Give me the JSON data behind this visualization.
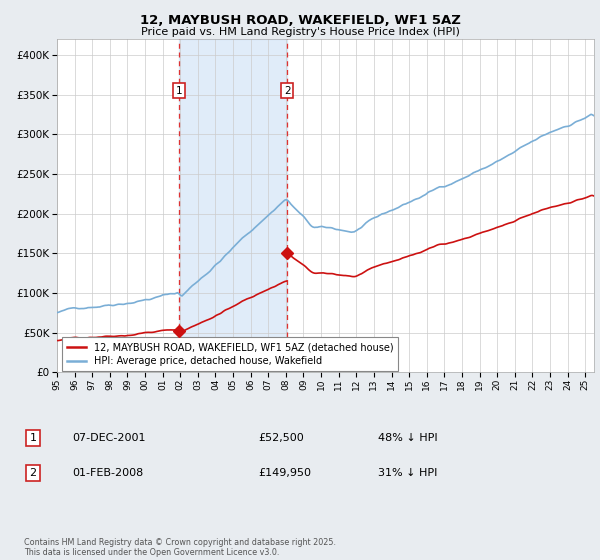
{
  "title": "12, MAYBUSH ROAD, WAKEFIELD, WF1 5AZ",
  "subtitle": "Price paid vs. HM Land Registry's House Price Index (HPI)",
  "background_color": "#e8ecf0",
  "plot_bg_color": "#ffffff",
  "y_ticks": [
    0,
    50000,
    100000,
    150000,
    200000,
    250000,
    300000,
    350000,
    400000
  ],
  "hpi_color": "#7aaed6",
  "price_color": "#cc1111",
  "sale1_x": 2001.92,
  "sale1_price": 52500,
  "sale2_x": 2008.08,
  "sale2_price": 149950,
  "legend_house": "12, MAYBUSH ROAD, WAKEFIELD, WF1 5AZ (detached house)",
  "legend_hpi": "HPI: Average price, detached house, Wakefield",
  "table_row1": [
    "1",
    "07-DEC-2001",
    "£52,500",
    "48% ↓ HPI"
  ],
  "table_row2": [
    "2",
    "01-FEB-2008",
    "£149,950",
    "31% ↓ HPI"
  ],
  "footnote": "Contains HM Land Registry data © Crown copyright and database right 2025.\nThis data is licensed under the Open Government Licence v3.0.",
  "xmin": 1995,
  "xmax": 2025.5,
  "ymin": 0,
  "ymax": 420000
}
